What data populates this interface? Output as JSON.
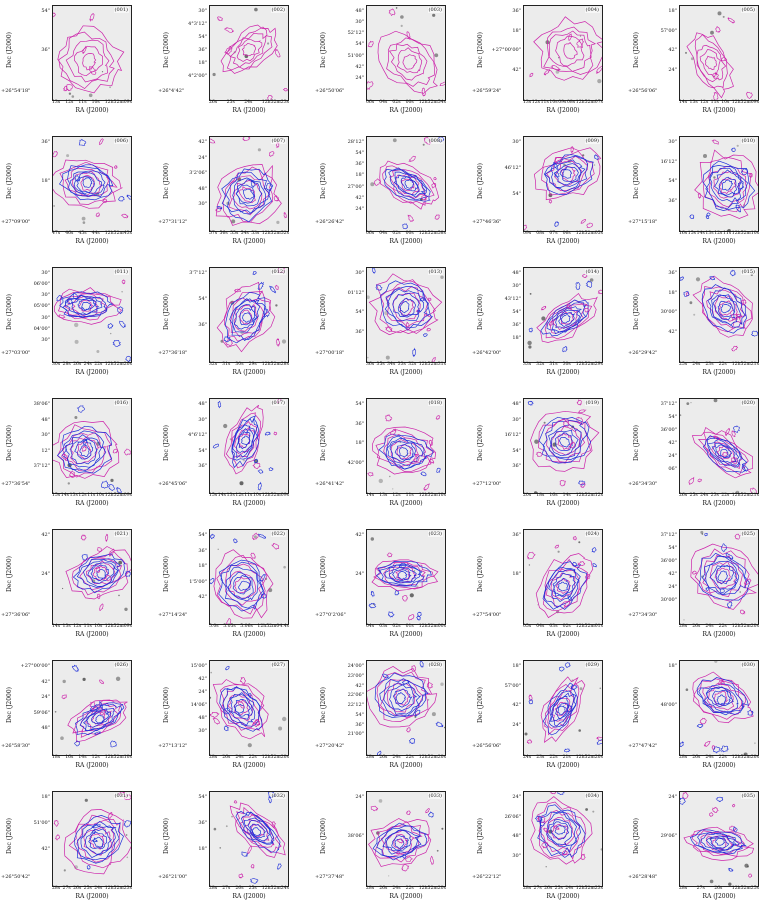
{
  "figure": {
    "panels": [
      {
        "id": "(001)",
        "ylabel": "Dec (J2000)",
        "yticks": [
          "54\"",
          "36\""
        ],
        "ybottom": "+26°54'18\"",
        "xticks": [
          "13s",
          "12s",
          "11s",
          "10s",
          "12h52m09s"
        ],
        "xlabel": "RA (J2000)"
      },
      {
        "id": "(002)",
        "ylabel": "Dec (J2000)",
        "yticks": [
          "30\"",
          "4°3'12\"",
          "54\"",
          "36\"",
          "18\"",
          "4°2'00\""
        ],
        "ybottom": "+26°4'42\"",
        "xticks": [
          "26s",
          "25s",
          "24s",
          "12h52m23s"
        ],
        "xlabel": "RA (J2000)"
      },
      {
        "id": "(003)",
        "ylabel": "Dec (J2000)",
        "yticks": [
          "48\"",
          "30\"",
          "52'12\"",
          "54\"",
          "51'00\"",
          "42\"",
          "24\""
        ],
        "ybottom": "+26°50'06\"",
        "xticks": [
          "06s",
          "04s",
          "02s",
          "00s",
          "12h52m54s"
        ],
        "xlabel": "RA (J2000)"
      },
      {
        "id": "(004)",
        "ylabel": "Dec (J2000)",
        "yticks": [
          "36\"",
          "18\"",
          "+27°00'00\"",
          "42\""
        ],
        "ybottom": "+26°59'24\"",
        "xticks": [
          "13s",
          "12s",
          "11s",
          "10s",
          "09s",
          "08s",
          "12h52m07s"
        ],
        "xlabel": "RA (J2000)"
      },
      {
        "id": "(005)",
        "ylabel": "Dec (J2000)",
        "yticks": [
          "18\"",
          "57'00\"",
          "42\"",
          "24\""
        ],
        "ybottom": "+26°56'06\"",
        "xticks": [
          "14s",
          "13s",
          "12s",
          "11s",
          "10s",
          "12h52m09s"
        ],
        "xlabel": "RA (J2000)"
      },
      {
        "id": "(006)",
        "ylabel": "Dec (J2000)",
        "yticks": [
          "36\"",
          "18\""
        ],
        "ybottom": "+27°09'00\"",
        "xticks": [
          "47s",
          "46s",
          "45s",
          "44s",
          "12h52m43s"
        ],
        "xlabel": "RA (J2000)"
      },
      {
        "id": "(007)",
        "ylabel": "Dec (J2000)",
        "yticks": [
          "42\"",
          "24\"",
          "3'2'06\"",
          "48\"",
          "30\""
        ],
        "ybottom": "+27°31'12\"",
        "xticks": [
          "57s",
          "56s",
          "55s",
          "54s",
          "53s",
          "12h52m52s"
        ],
        "xlabel": "RA (J2000)"
      },
      {
        "id": "(008)",
        "ylabel": "Dec (J2000)",
        "yticks": [
          "28'12\"",
          "54\"",
          "36\"",
          "18\"",
          "27'00\"",
          "42\"",
          "24\""
        ],
        "ybottom": "+26°26'42\"",
        "xticks": [
          "06s",
          "04s",
          "02s",
          "00s",
          "12h52m58s"
        ],
        "xlabel": "RA (J2000)"
      },
      {
        "id": "(009)",
        "ylabel": "Dec (J2000)",
        "yticks": [
          "30\"",
          "46'12\"",
          "54\""
        ],
        "ybottom": "+27°46'36\"",
        "xticks": [
          "09s",
          "08s",
          "07s",
          "06s",
          "12h52m05s"
        ],
        "xlabel": "RA (J2000)"
      },
      {
        "id": "(010)",
        "ylabel": "Dec (J2000)",
        "yticks": [
          "30\"",
          "16'12\"",
          "54\"",
          "36\""
        ],
        "ybottom": "+27°15'18\"",
        "xticks": [
          "16s",
          "15s",
          "14s",
          "13s",
          "12s",
          "11s",
          "12h52m10s"
        ],
        "xlabel": "RA (J2000)"
      },
      {
        "id": "(011)",
        "ylabel": "Dec (J2000)",
        "yticks": [
          "30\"",
          "06'00\"",
          "30\"",
          "05'00\"",
          "30\"",
          "04'00\"",
          "30\""
        ],
        "ybottom": "+27°03'00\"",
        "xticks": [
          "30s",
          "28s",
          "26s",
          "24s",
          "22s",
          "12h52m20s"
        ],
        "xlabel": "RA (J2000)"
      },
      {
        "id": "(012)",
        "ylabel": "Dec (J2000)",
        "yticks": [
          "3'7'12\"",
          "54\"",
          "36\""
        ],
        "ybottom": "+27°36'18\"",
        "xticks": [
          "32s",
          "31s",
          "30s",
          "29s",
          "12h52m28s"
        ],
        "xlabel": "RA (J2000)"
      },
      {
        "id": "(013)",
        "ylabel": "Dec (J2000)",
        "yticks": [
          "30\"",
          "01'12\"",
          "54\"",
          "36\""
        ],
        "ybottom": "+27°00'18\"",
        "xticks": [
          "36s",
          "35s",
          "34s",
          "33s",
          "32s",
          "12h52m31s"
        ],
        "xlabel": "RA (J2000)"
      },
      {
        "id": "(014)",
        "ylabel": "Dec (J2000)",
        "yticks": [
          "48\"",
          "30\"",
          "43'12\"",
          "54\"",
          "36\"",
          "18\""
        ],
        "ybottom": "+26°42'00\"",
        "xticks": [
          "33s",
          "32s",
          "31s",
          "30s",
          "12h52m29s"
        ],
        "xlabel": "RA (J2000)"
      },
      {
        "id": "(015)",
        "ylabel": "Dec (J2000)",
        "yticks": [
          "36\"",
          "18\"",
          "30'00\"",
          "42\""
        ],
        "ybottom": "+26°29'42\"",
        "xticks": [
          "25s",
          "24s",
          "23s",
          "22s",
          "12h52m21s"
        ],
        "xlabel": "RA (J2000)"
      },
      {
        "id": "(016)",
        "ylabel": "Dec (J2000)",
        "yticks": [
          "38'06\"",
          "48\"",
          "30\"",
          "12\"",
          "37'12\""
        ],
        "ybottom": "+27°36'54\"",
        "xticks": [
          "15s",
          "14s",
          "13s",
          "12s",
          "11s",
          "10s",
          "12h52m09s"
        ],
        "xlabel": "RA (J2000)"
      },
      {
        "id": "(017)",
        "ylabel": "Dec (J2000)",
        "yticks": [
          "48\"",
          "30\"",
          "4°6'12\"",
          "54\"",
          "36\""
        ],
        "ybottom": "+26°45'06\"",
        "xticks": [
          "15s",
          "14s",
          "13s",
          "12s",
          "11s",
          "10s",
          "12h52m09s"
        ],
        "xlabel": "RA (J2000)"
      },
      {
        "id": "(018)",
        "ylabel": "Dec (J2000)",
        "yticks": [
          "54\"",
          "36\"",
          "18\"",
          "42'00\""
        ],
        "ybottom": "+26°41'42\"",
        "xticks": [
          "14s",
          "13s",
          "12s",
          "11s",
          "12h52m10s"
        ],
        "xlabel": "RA (J2000)"
      },
      {
        "id": "(019)",
        "ylabel": "Dec (J2000)",
        "yticks": [
          "48\"",
          "30\"",
          "16'12\"",
          "54\"",
          "36\""
        ],
        "ybottom": "+27°12'00\"",
        "xticks": [
          "20s",
          "18s",
          "16s",
          "14s",
          "12h52m12s"
        ],
        "xlabel": "RA (J2000)"
      },
      {
        "id": "(020)",
        "ylabel": "Dec (J2000)",
        "yticks": [
          "37'12\"",
          "54\"",
          "36'00\"",
          "42\"",
          "24\"",
          "06\""
        ],
        "ybottom": "+26°34'30\"",
        "xticks": [
          "26s",
          "25s",
          "24s",
          "23s",
          "22s",
          "12h52m21s"
        ],
        "xlabel": "RA (J2000)"
      },
      {
        "id": "(021)",
        "ylabel": "Dec (J2000)",
        "yticks": [
          "42\"",
          "24\""
        ],
        "ybottom": "+27°36'06\"",
        "xticks": [
          "14s",
          "13s",
          "12s",
          "11s",
          "10s",
          "12h52m09s"
        ],
        "xlabel": "RA (J2000)"
      },
      {
        "id": "(022)",
        "ylabel": "Dec (J2000)",
        "yticks": [
          "54\"",
          "36\"",
          "18\"",
          "1'5'00\"",
          "42\""
        ],
        "ybottom": "+27°14'24\"",
        "xticks": [
          "5.0s",
          "5.05s",
          "5.06s",
          "12h52m04.4s"
        ],
        "xlabel": "RA (J2000)"
      },
      {
        "id": "(023)",
        "ylabel": "Dec (J2000)",
        "yticks": [
          "42\"",
          "24\""
        ],
        "ybottom": "+27°0'2'06\"",
        "xticks": [
          "04s",
          "03s",
          "02s",
          "01s",
          "12h52m00s"
        ],
        "xlabel": "RA (J2000)"
      },
      {
        "id": "(024)",
        "ylabel": "Dec (J2000)",
        "yticks": [
          "36\"",
          "18\""
        ],
        "ybottom": "+27°54'00\"",
        "xticks": [
          "05s",
          "04s",
          "03s",
          "02s",
          "12h52m01s"
        ],
        "xlabel": "RA (J2000)"
      },
      {
        "id": "(025)",
        "ylabel": "Dec (J2000)",
        "yticks": [
          "37'12\"",
          "54\"",
          "36'00\"",
          "42\"",
          "24\"",
          "30'00\""
        ],
        "ybottom": "+27°34'30\"",
        "xticks": [
          "28s",
          "26s",
          "24s",
          "22s",
          "12h52m20s"
        ],
        "xlabel": "RA (J2000)"
      },
      {
        "id": "(026)",
        "ylabel": "Dec (J2000)",
        "yticks": [
          "+27°00'00\"",
          "42\"",
          "24\"",
          "59'06\"",
          "48\""
        ],
        "ybottom": "+26°58'30\"",
        "xticks": [
          "18s",
          "16s",
          "14s",
          "12s",
          "12h52m10s"
        ],
        "xlabel": "RA (J2000)"
      },
      {
        "id": "(027)",
        "ylabel": "Dec (J2000)",
        "yticks": [
          "15'00\"",
          "42\"",
          "24\"",
          "14'06\"",
          "48\"",
          "30\""
        ],
        "ybottom": "+27°13'12\"",
        "xticks": [
          "28s",
          "26s",
          "24s",
          "22s",
          "12h52m20s"
        ],
        "xlabel": "RA (J2000)"
      },
      {
        "id": "(028)",
        "ylabel": "Dec (J2000)",
        "yticks": [
          "24'00\"",
          "23'00\"",
          "42\"",
          "22'06\"",
          "22'12\"",
          "54\"",
          "36\"",
          "21'00\""
        ],
        "ybottom": "+27°20'42\"",
        "xticks": [
          "28s",
          "26s",
          "24s",
          "22s",
          "12h52m20s"
        ],
        "xlabel": "RA (J2000)"
      },
      {
        "id": "(029)",
        "ylabel": "Dec (J2000)",
        "yticks": [
          "18\"",
          "57'00\"",
          "42\"",
          "24\""
        ],
        "ybottom": "+26°56'06\"",
        "xticks": [
          "24s",
          "23s",
          "22s",
          "21s",
          "12h52m20s"
        ],
        "xlabel": "RA (J2000)"
      },
      {
        "id": "(030)",
        "ylabel": "Dec (J2000)",
        "yticks": [
          "18\"",
          "48'00\""
        ],
        "ybottom": "+27°47'42\"",
        "xticks": [
          "28s",
          "26s",
          "24s",
          "22s",
          "12h52m20s"
        ],
        "xlabel": "RA (J2000)"
      },
      {
        "id": "(031)",
        "ylabel": "Dec (J2000)",
        "yticks": [
          "18\"",
          "51'00\"",
          "42\""
        ],
        "ybottom": "+26°50'42\"",
        "xticks": [
          "28s",
          "27s",
          "26s",
          "25s",
          "24s",
          "12h52m23s"
        ],
        "xlabel": "RA (J2000)"
      },
      {
        "id": "(032)",
        "ylabel": "Dec (J2000)",
        "yticks": [
          "54\"",
          "36\"",
          "18\""
        ],
        "ybottom": "+26°21'00\"",
        "xticks": [
          "28s",
          "27s",
          "26s",
          "25s",
          "12h52m24s"
        ],
        "xlabel": "RA (J2000)"
      },
      {
        "id": "(033)",
        "ylabel": "Dec (J2000)",
        "yticks": [
          "24\"",
          "38'06\""
        ],
        "ybottom": "+27°37'48\"",
        "xticks": [
          "28s",
          "26s",
          "24s",
          "22s",
          "12h52m20s"
        ],
        "xlabel": "RA (J2000)"
      },
      {
        "id": "(034)",
        "ylabel": "Dec (J2000)",
        "yticks": [
          "24\"",
          "26'06\"",
          "48\"",
          "30\""
        ],
        "ybottom": "+26°22'12\"",
        "xticks": [
          "28s",
          "27s",
          "26s",
          "25s",
          "24s",
          "12h52m23s"
        ],
        "xlabel": "RA (J2000)"
      },
      {
        "id": "(035)",
        "ylabel": "Dec (J2000)",
        "yticks": [
          "24\"",
          "29'06\""
        ],
        "ybottom": "+26°28'48\"",
        "xticks": [
          "28s",
          "27s",
          "26s",
          "12h52m25s"
        ],
        "xlabel": "RA (J2000)"
      }
    ],
    "colors": {
      "contour_a": "#cc22aa",
      "contour_b": "#1f2fd9",
      "background": "#ececec",
      "frame": "#222222"
    }
  }
}
